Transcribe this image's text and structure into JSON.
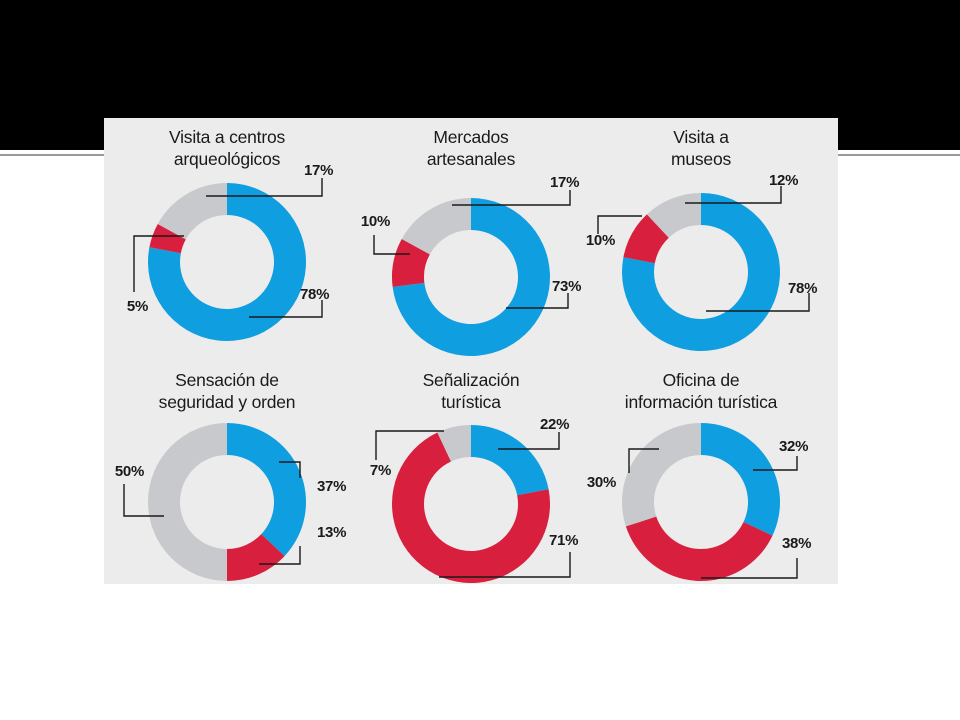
{
  "colors": {
    "positive": "#0f9ee0",
    "negative": "#d81f3d",
    "neutral": "#c8c9cc",
    "panel_bg": "#ececec",
    "header_band": "#000000"
  },
  "chart_data": [
    {
      "type": "pie",
      "subtype": "donut",
      "title_lines": [
        "Visita a centros",
        "arqueológicos"
      ],
      "segments": [
        {
          "category": "blue",
          "value": 78,
          "label": "78%"
        },
        {
          "category": "red",
          "value": 5,
          "label": "5%"
        },
        {
          "category": "gray",
          "value": 17,
          "label": "17%"
        }
      ]
    },
    {
      "type": "pie",
      "subtype": "donut",
      "title_lines": [
        "Mercados",
        "artesanales"
      ],
      "segments": [
        {
          "category": "blue",
          "value": 73,
          "label": "73%"
        },
        {
          "category": "red",
          "value": 10,
          "label": "10%"
        },
        {
          "category": "gray",
          "value": 17,
          "label": "17%"
        }
      ]
    },
    {
      "type": "pie",
      "subtype": "donut",
      "title_lines": [
        "Visita a",
        "museos"
      ],
      "segments": [
        {
          "category": "blue",
          "value": 78,
          "label": "78%"
        },
        {
          "category": "red",
          "value": 10,
          "label": "10%"
        },
        {
          "category": "gray",
          "value": 12,
          "label": "12%"
        }
      ]
    },
    {
      "type": "pie",
      "subtype": "donut",
      "title_lines": [
        "Sensación de",
        "seguridad y orden"
      ],
      "segments": [
        {
          "category": "blue",
          "value": 37,
          "label": "37%"
        },
        {
          "category": "red",
          "value": 13,
          "label": "13%"
        },
        {
          "category": "gray",
          "value": 50,
          "label": "50%"
        }
      ]
    },
    {
      "type": "pie",
      "subtype": "donut",
      "title_lines": [
        "Señalización",
        "turística"
      ],
      "segments": [
        {
          "category": "blue",
          "value": 22,
          "label": "22%"
        },
        {
          "category": "red",
          "value": 71,
          "label": "71%"
        },
        {
          "category": "gray",
          "value": 7,
          "label": "7%"
        }
      ]
    },
    {
      "type": "pie",
      "subtype": "donut",
      "title_lines": [
        "Oficina de",
        "información turística"
      ],
      "segments": [
        {
          "category": "blue",
          "value": 32,
          "label": "32%"
        },
        {
          "category": "red",
          "value": 38,
          "label": "38%"
        },
        {
          "category": "gray",
          "value": 30,
          "label": "30%"
        }
      ]
    }
  ]
}
